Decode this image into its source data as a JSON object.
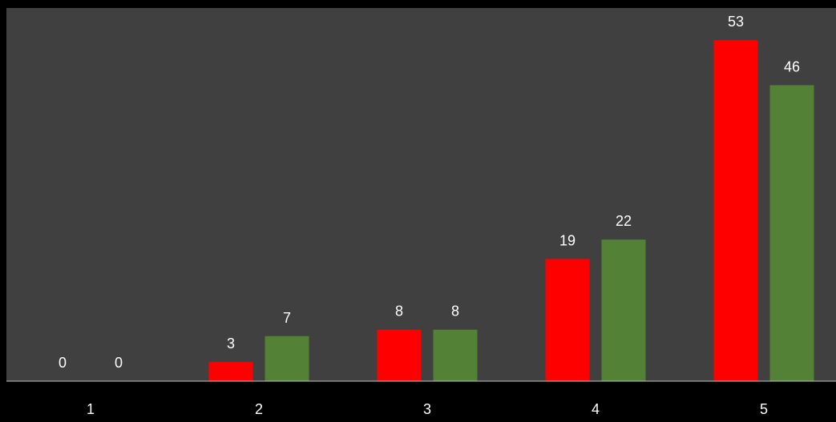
{
  "chart_data": {
    "type": "bar",
    "categories": [
      "1",
      "2",
      "3",
      "4",
      "5"
    ],
    "series": [
      {
        "values": [
          0,
          3,
          8,
          19,
          53
        ],
        "color": "#ff0000"
      },
      {
        "values": [
          0,
          7,
          8,
          22,
          46
        ],
        "color": "#538135"
      }
    ],
    "ylim": [
      0,
      58
    ],
    "grid": false,
    "legend": "none",
    "title": "",
    "xlabel": "",
    "ylabel": ""
  },
  "colors": {
    "page_background": "#000000",
    "plot_background": "#404040",
    "axis_line": "#bfbfbf",
    "label_text": "#ffffff"
  }
}
